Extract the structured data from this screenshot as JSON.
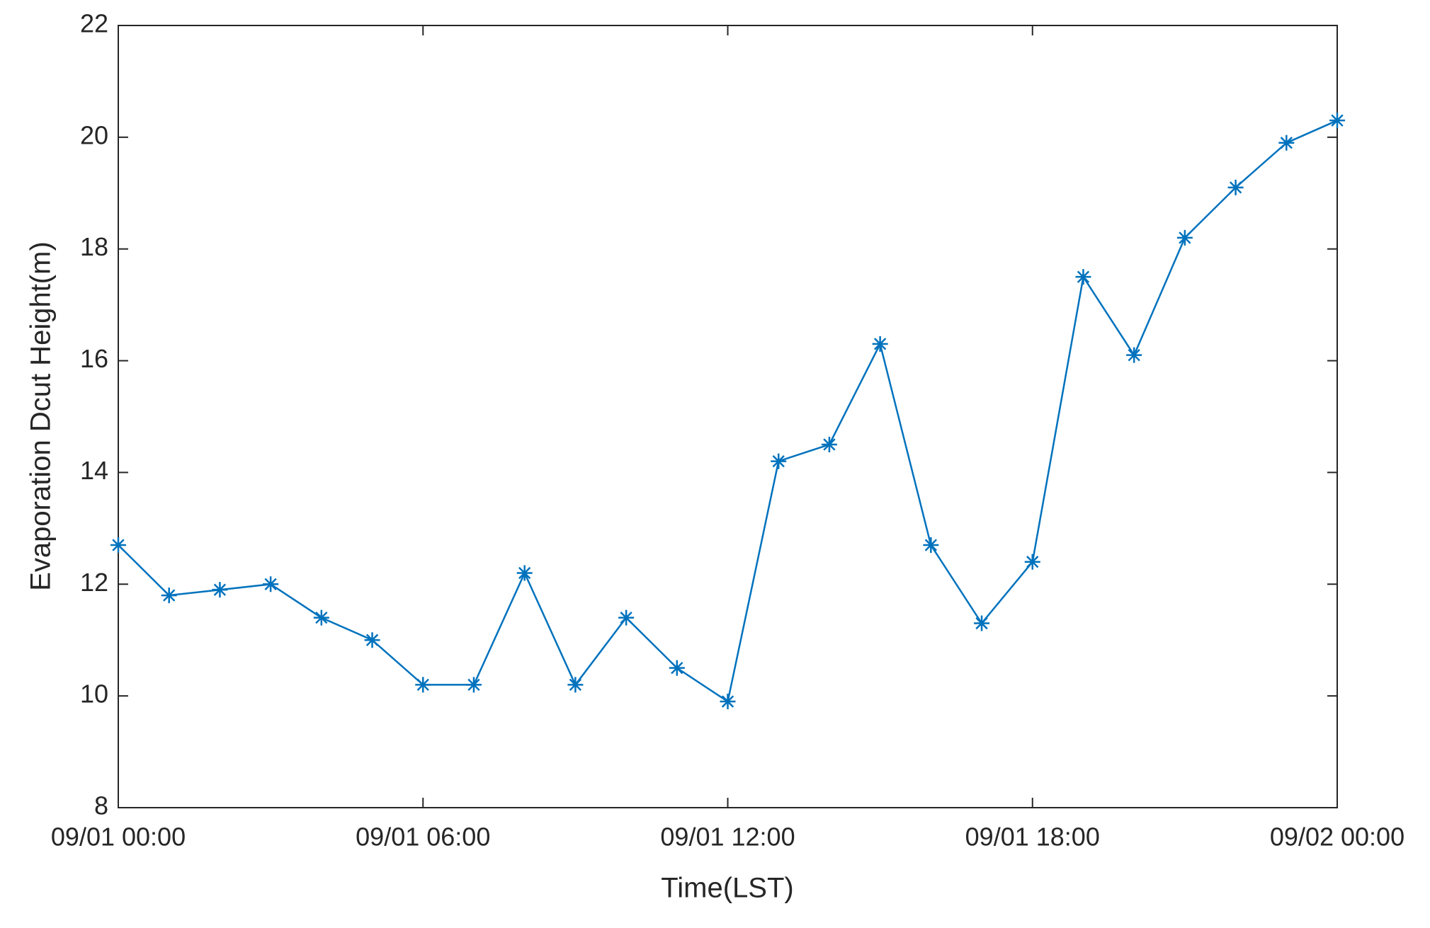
{
  "chart_data": {
    "type": "line",
    "x_label": "Time(LST)",
    "y_label": "Evaporation Dcut Height(m)",
    "x": [
      "09/01 00:00",
      "09/01 01:00",
      "09/01 02:00",
      "09/01 03:00",
      "09/01 04:00",
      "09/01 05:00",
      "09/01 06:00",
      "09/01 07:00",
      "09/01 08:00",
      "09/01 09:00",
      "09/01 10:00",
      "09/01 11:00",
      "09/01 12:00",
      "09/01 13:00",
      "09/01 14:00",
      "09/01 15:00",
      "09/01 16:00",
      "09/01 17:00",
      "09/01 18:00",
      "09/01 19:00",
      "09/01 20:00",
      "09/01 21:00",
      "09/01 22:00",
      "09/01 23:00",
      "09/02 00:00"
    ],
    "series": [
      {
        "color": "#0072bd",
        "marker": "asterisk",
        "values": [
          12.7,
          11.8,
          11.9,
          12.0,
          11.4,
          11.0,
          10.2,
          10.2,
          12.2,
          10.2,
          11.4,
          10.5,
          9.9,
          14.2,
          14.5,
          16.3,
          12.7,
          11.3,
          12.4,
          17.5,
          16.1,
          18.2,
          19.1,
          19.9,
          20.3
        ]
      }
    ],
    "xlim": [
      "09/01 00:00",
      "09/02 00:00"
    ],
    "xticks": [
      "09/01 00:00",
      "09/01 06:00",
      "09/01 12:00",
      "09/01 18:00",
      "09/02 00:00"
    ],
    "ylim": [
      8,
      22
    ],
    "yticks": [
      8,
      10,
      12,
      14,
      16,
      18,
      20,
      22
    ]
  }
}
